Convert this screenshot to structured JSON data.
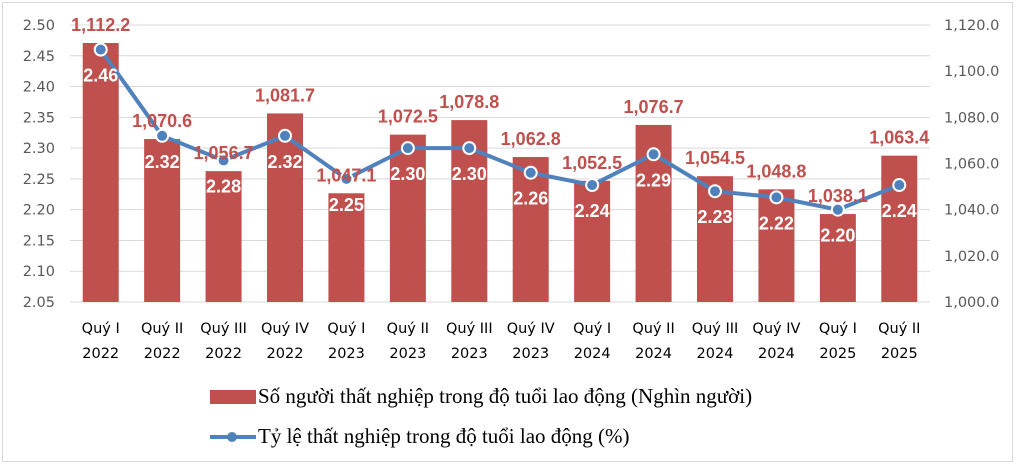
{
  "chart_data": {
    "type": "bar+line",
    "categories": [
      [
        "Quý I",
        "2022"
      ],
      [
        "Quý II",
        "2022"
      ],
      [
        "Quý III",
        "2022"
      ],
      [
        "Quý IV",
        "2022"
      ],
      [
        "Quý I",
        "2023"
      ],
      [
        "Quý II",
        "2023"
      ],
      [
        "Quý III",
        "2023"
      ],
      [
        "Quý IV",
        "2023"
      ],
      [
        "Quý I",
        "2024"
      ],
      [
        "Quý II",
        "2024"
      ],
      [
        "Quý III",
        "2024"
      ],
      [
        "Quý IV",
        "2024"
      ],
      [
        "Quý I",
        "2025"
      ],
      [
        "Quý II",
        "2025"
      ]
    ],
    "series": [
      {
        "name": "Số người thất nghiệp trong độ tuổi lao động (Nghìn người)",
        "type": "bar",
        "axis": "right",
        "color": "#c0504d",
        "values": [
          1112.2,
          1070.6,
          1056.7,
          1081.7,
          1047.1,
          1072.5,
          1078.8,
          1062.8,
          1052.5,
          1076.7,
          1054.5,
          1048.8,
          1038.1,
          1063.4
        ],
        "labels": [
          "1,112.2",
          "1,070.6",
          "1,056.7",
          "1,081.7",
          "1,047.1",
          "1,072.5",
          "1,078.8",
          "1,062.8",
          "1,052.5",
          "1,076.7",
          "1,054.5",
          "1,048.8",
          "1,038.1",
          "1,063.4"
        ]
      },
      {
        "name": "Tỷ lệ thất nghiệp trong độ tuổi lao động (%)",
        "type": "line",
        "axis": "left",
        "color": "#4f81bd",
        "values": [
          2.46,
          2.32,
          2.28,
          2.32,
          2.25,
          2.3,
          2.3,
          2.26,
          2.24,
          2.29,
          2.23,
          2.22,
          2.2,
          2.24
        ],
        "labels": [
          "2.46",
          "2.32",
          "2.28",
          "2.32",
          "2.25",
          "2.30",
          "2.30",
          "2.26",
          "2.24",
          "2.29",
          "2.23",
          "2.22",
          "2.20",
          "2.24"
        ]
      }
    ],
    "left_axis": {
      "ylim": [
        2.05,
        2.5
      ],
      "ticks": [
        "2.50",
        "2.45",
        "2.40",
        "2.35",
        "2.30",
        "2.25",
        "2.20",
        "2.15",
        "2.10",
        "2.05"
      ]
    },
    "right_axis": {
      "ylim": [
        1000.0,
        1120.0
      ],
      "ticks": [
        "1,120.0",
        "1,100.0",
        "1,080.0",
        "1,060.0",
        "1,040.0",
        "1,020.0",
        "1,000.0"
      ]
    },
    "grid": true,
    "legend_position": "bottom",
    "title": "",
    "xlabel": "",
    "ylabel": ""
  },
  "legend": {
    "bar_label": "Số người thất nghiệp trong độ tuổi lao động (Nghìn người)",
    "line_label": "Tỷ lệ thất nghiệp trong độ tuổi lao động (%)"
  }
}
